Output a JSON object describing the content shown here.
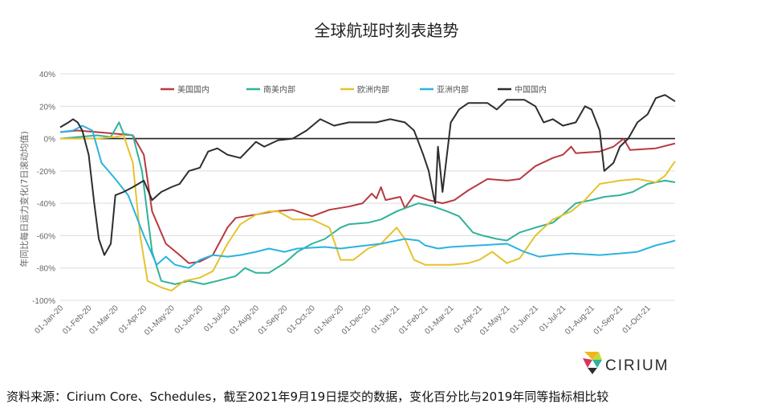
{
  "title": "全球航班时刻表趋势",
  "source_note": "资料来源：Cirium Core、Schedules，截至2021年9月19日提交的数据，变化百分比与2019年同等指标相比较",
  "logo_text": "CIRIUM",
  "chart_data": {
    "type": "line",
    "title": "全球航班时刻表趋势",
    "ylabel": "年同比每日运力变化(7日滚动均值)",
    "xlabel": "",
    "ylim": [
      -100,
      40
    ],
    "yticks": [
      -100,
      -80,
      -60,
      -40,
      -20,
      0,
      20,
      40
    ],
    "ytick_labels": [
      "-100%",
      "-80%",
      "-60%",
      "-40%",
      "-20%",
      "0%",
      "20%",
      "40%"
    ],
    "xtick_labels": [
      "01-Jan-20",
      "01-Feb-20",
      "01-Mar-20",
      "01-Apr-20",
      "01-May-20",
      "01-Jun-20",
      "01-Jul-20",
      "01-Aug-20",
      "01-Sep-20",
      "01-Oct-20",
      "01-Nov-20",
      "01-Dec-20",
      "01-Jan-21",
      "01-Feb-21",
      "01-Mar-21",
      "01-Apr-21",
      "01-May-21",
      "01-Jun-21",
      "01-Jul-21",
      "01-Aug-21",
      "01-Sep-21",
      "01-Oct-21"
    ],
    "x_range": [
      "2020-01-01",
      "2021-10-31"
    ],
    "grid": "horizontal",
    "reference_line": 0,
    "legend_position": "top",
    "series": [
      {
        "name": "美国国内",
        "color": "#b83a41",
        "points": [
          [
            "2020-01-01",
            4
          ],
          [
            "2020-01-20",
            5
          ],
          [
            "2020-02-10",
            4
          ],
          [
            "2020-03-01",
            3
          ],
          [
            "2020-03-20",
            2
          ],
          [
            "2020-04-01",
            -10
          ],
          [
            "2020-04-10",
            -45
          ],
          [
            "2020-04-25",
            -65
          ],
          [
            "2020-05-10",
            -72
          ],
          [
            "2020-05-20",
            -77
          ],
          [
            "2020-06-01",
            -76
          ],
          [
            "2020-06-15",
            -72
          ],
          [
            "2020-07-01",
            -55
          ],
          [
            "2020-07-10",
            -49
          ],
          [
            "2020-08-01",
            -47
          ],
          [
            "2020-08-20",
            -45
          ],
          [
            "2020-09-10",
            -44
          ],
          [
            "2020-10-01",
            -48
          ],
          [
            "2020-10-20",
            -44
          ],
          [
            "2020-11-10",
            -42
          ],
          [
            "2020-11-25",
            -40
          ],
          [
            "2020-12-05",
            -34
          ],
          [
            "2020-12-10",
            -37
          ],
          [
            "2020-12-15",
            -30
          ],
          [
            "2020-12-20",
            -38
          ],
          [
            "2021-01-05",
            -36
          ],
          [
            "2021-01-10",
            -43
          ],
          [
            "2021-01-20",
            -35
          ],
          [
            "2021-02-05",
            -38
          ],
          [
            "2021-02-20",
            -40
          ],
          [
            "2021-03-05",
            -38
          ],
          [
            "2021-03-20",
            -32
          ],
          [
            "2021-04-10",
            -25
          ],
          [
            "2021-05-01",
            -26
          ],
          [
            "2021-05-15",
            -25
          ],
          [
            "2021-06-01",
            -17
          ],
          [
            "2021-06-20",
            -12
          ],
          [
            "2021-07-01",
            -10
          ],
          [
            "2021-07-10",
            -5
          ],
          [
            "2021-07-15",
            -9
          ],
          [
            "2021-08-10",
            -8
          ],
          [
            "2021-08-25",
            -5
          ],
          [
            "2021-09-05",
            0
          ],
          [
            "2021-09-12",
            -7
          ],
          [
            "2021-10-10",
            -6
          ],
          [
            "2021-10-31",
            -3
          ]
        ]
      },
      {
        "name": "南美内部",
        "color": "#2fb39a",
        "points": [
          [
            "2020-01-01",
            0
          ],
          [
            "2020-01-20",
            1
          ],
          [
            "2020-02-10",
            2
          ],
          [
            "2020-02-25",
            1
          ],
          [
            "2020-03-05",
            10
          ],
          [
            "2020-03-10",
            3
          ],
          [
            "2020-03-20",
            2
          ],
          [
            "2020-03-30",
            -20
          ],
          [
            "2020-04-10",
            -70
          ],
          [
            "2020-04-20",
            -88
          ],
          [
            "2020-05-05",
            -90
          ],
          [
            "2020-05-20",
            -88
          ],
          [
            "2020-06-05",
            -90
          ],
          [
            "2020-06-20",
            -88
          ],
          [
            "2020-07-10",
            -85
          ],
          [
            "2020-07-20",
            -80
          ],
          [
            "2020-08-01",
            -83
          ],
          [
            "2020-08-15",
            -83
          ],
          [
            "2020-09-01",
            -77
          ],
          [
            "2020-09-15",
            -70
          ],
          [
            "2020-10-01",
            -65
          ],
          [
            "2020-10-15",
            -62
          ],
          [
            "2020-11-01",
            -55
          ],
          [
            "2020-11-10",
            -53
          ],
          [
            "2020-12-01",
            -52
          ],
          [
            "2020-12-15",
            -50
          ],
          [
            "2021-01-01",
            -45
          ],
          [
            "2021-01-15",
            -42
          ],
          [
            "2021-01-25",
            -40
          ],
          [
            "2021-02-10",
            -42
          ],
          [
            "2021-02-25",
            -45
          ],
          [
            "2021-03-10",
            -48
          ],
          [
            "2021-03-25",
            -58
          ],
          [
            "2021-04-05",
            -60
          ],
          [
            "2021-04-20",
            -62
          ],
          [
            "2021-05-01",
            -63
          ],
          [
            "2021-05-15",
            -58
          ],
          [
            "2021-06-01",
            -55
          ],
          [
            "2021-06-20",
            -52
          ],
          [
            "2021-07-01",
            -47
          ],
          [
            "2021-07-15",
            -40
          ],
          [
            "2021-08-01",
            -38
          ],
          [
            "2021-08-15",
            -36
          ],
          [
            "2021-09-01",
            -35
          ],
          [
            "2021-09-15",
            -33
          ],
          [
            "2021-10-01",
            -28
          ],
          [
            "2021-10-20",
            -26
          ],
          [
            "2021-10-31",
            -27
          ]
        ]
      },
      {
        "name": "欧洲内部",
        "color": "#e6c22e",
        "points": [
          [
            "2020-01-01",
            0
          ],
          [
            "2020-01-20",
            0
          ],
          [
            "2020-02-10",
            0
          ],
          [
            "2020-03-01",
            1
          ],
          [
            "2020-03-10",
            2
          ],
          [
            "2020-03-20",
            -15
          ],
          [
            "2020-03-28",
            -60
          ],
          [
            "2020-04-05",
            -88
          ],
          [
            "2020-04-20",
            -92
          ],
          [
            "2020-05-01",
            -94
          ],
          [
            "2020-05-15",
            -88
          ],
          [
            "2020-06-01",
            -86
          ],
          [
            "2020-06-15",
            -82
          ],
          [
            "2020-07-01",
            -65
          ],
          [
            "2020-07-15",
            -53
          ],
          [
            "2020-08-01",
            -47
          ],
          [
            "2020-08-15",
            -45
          ],
          [
            "2020-08-25",
            -45
          ],
          [
            "2020-09-10",
            -50
          ],
          [
            "2020-10-01",
            -50
          ],
          [
            "2020-10-20",
            -55
          ],
          [
            "2020-11-01",
            -75
          ],
          [
            "2020-11-15",
            -75
          ],
          [
            "2020-12-01",
            -68
          ],
          [
            "2020-12-15",
            -65
          ],
          [
            "2021-01-01",
            -55
          ],
          [
            "2021-01-10",
            -62
          ],
          [
            "2021-01-20",
            -75
          ],
          [
            "2021-02-01",
            -78
          ],
          [
            "2021-03-01",
            -78
          ],
          [
            "2021-03-20",
            -77
          ],
          [
            "2021-04-01",
            -75
          ],
          [
            "2021-04-15",
            -70
          ],
          [
            "2021-05-01",
            -77
          ],
          [
            "2021-05-15",
            -74
          ],
          [
            "2021-06-01",
            -60
          ],
          [
            "2021-06-20",
            -50
          ],
          [
            "2021-07-10",
            -45
          ],
          [
            "2021-07-25",
            -38
          ],
          [
            "2021-08-10",
            -28
          ],
          [
            "2021-09-01",
            -26
          ],
          [
            "2021-09-20",
            -25
          ],
          [
            "2021-10-10",
            -27
          ],
          [
            "2021-10-20",
            -23
          ],
          [
            "2021-10-31",
            -14
          ]
        ]
      },
      {
        "name": "亚洲内部",
        "color": "#2bb3df",
        "points": [
          [
            "2020-01-01",
            4
          ],
          [
            "2020-01-15",
            5
          ],
          [
            "2020-01-25",
            8
          ],
          [
            "2020-02-05",
            5
          ],
          [
            "2020-02-15",
            -15
          ],
          [
            "2020-03-01",
            -25
          ],
          [
            "2020-03-15",
            -35
          ],
          [
            "2020-04-01",
            -60
          ],
          [
            "2020-04-15",
            -78
          ],
          [
            "2020-04-25",
            -73
          ],
          [
            "2020-05-05",
            -78
          ],
          [
            "2020-05-20",
            -80
          ],
          [
            "2020-06-01",
            -75
          ],
          [
            "2020-06-15",
            -72
          ],
          [
            "2020-07-01",
            -73
          ],
          [
            "2020-07-15",
            -72
          ],
          [
            "2020-08-01",
            -70
          ],
          [
            "2020-08-15",
            -68
          ],
          [
            "2020-09-01",
            -70
          ],
          [
            "2020-09-15",
            -68
          ],
          [
            "2020-10-15",
            -67
          ],
          [
            "2020-11-01",
            -68
          ],
          [
            "2020-11-15",
            -67
          ],
          [
            "2020-12-15",
            -65
          ],
          [
            "2021-01-10",
            -62
          ],
          [
            "2021-01-25",
            -63
          ],
          [
            "2021-02-01",
            -66
          ],
          [
            "2021-02-15",
            -68
          ],
          [
            "2021-03-01",
            -67
          ],
          [
            "2021-04-01",
            -66
          ],
          [
            "2021-05-01",
            -65
          ],
          [
            "2021-05-20",
            -70
          ],
          [
            "2021-06-05",
            -73
          ],
          [
            "2021-06-20",
            -72
          ],
          [
            "2021-07-10",
            -71
          ],
          [
            "2021-08-10",
            -72
          ],
          [
            "2021-09-01",
            -71
          ],
          [
            "2021-09-20",
            -70
          ],
          [
            "2021-10-10",
            -66
          ],
          [
            "2021-10-25",
            -64
          ],
          [
            "2021-10-31",
            -63
          ]
        ]
      },
      {
        "name": "中国国内",
        "color": "#2d2d2d",
        "points": [
          [
            "2020-01-01",
            7
          ],
          [
            "2020-01-10",
            10
          ],
          [
            "2020-01-15",
            12
          ],
          [
            "2020-01-20",
            10
          ],
          [
            "2020-01-25",
            5
          ],
          [
            "2020-02-01",
            -10
          ],
          [
            "2020-02-07",
            -40
          ],
          [
            "2020-02-12",
            -62
          ],
          [
            "2020-02-18",
            -72
          ],
          [
            "2020-02-25",
            -65
          ],
          [
            "2020-03-01",
            -35
          ],
          [
            "2020-03-10",
            -33
          ],
          [
            "2020-03-20",
            -30
          ],
          [
            "2020-04-01",
            -26
          ],
          [
            "2020-04-10",
            -38
          ],
          [
            "2020-04-20",
            -33
          ],
          [
            "2020-05-01",
            -30
          ],
          [
            "2020-05-10",
            -28
          ],
          [
            "2020-05-20",
            -20
          ],
          [
            "2020-06-01",
            -18
          ],
          [
            "2020-06-10",
            -8
          ],
          [
            "2020-06-20",
            -6
          ],
          [
            "2020-07-01",
            -10
          ],
          [
            "2020-07-15",
            -12
          ],
          [
            "2020-08-01",
            -2
          ],
          [
            "2020-08-10",
            -5
          ],
          [
            "2020-08-25",
            -1
          ],
          [
            "2020-09-10",
            0
          ],
          [
            "2020-09-25",
            5
          ],
          [
            "2020-10-10",
            12
          ],
          [
            "2020-10-25",
            8
          ],
          [
            "2020-11-10",
            10
          ],
          [
            "2020-11-25",
            10
          ],
          [
            "2020-12-10",
            10
          ],
          [
            "2020-12-25",
            12
          ],
          [
            "2021-01-10",
            10
          ],
          [
            "2021-01-20",
            5
          ],
          [
            "2021-01-30",
            -10
          ],
          [
            "2021-02-05",
            -20
          ],
          [
            "2021-02-10",
            -35
          ],
          [
            "2021-02-12",
            -40
          ],
          [
            "2021-02-15",
            -5
          ],
          [
            "2021-02-20",
            -33
          ],
          [
            "2021-03-01",
            10
          ],
          [
            "2021-03-10",
            18
          ],
          [
            "2021-03-20",
            22
          ],
          [
            "2021-04-10",
            22
          ],
          [
            "2021-04-20",
            18
          ],
          [
            "2021-05-01",
            24
          ],
          [
            "2021-05-20",
            24
          ],
          [
            "2021-06-01",
            20
          ],
          [
            "2021-06-10",
            10
          ],
          [
            "2021-06-20",
            12
          ],
          [
            "2021-07-01",
            8
          ],
          [
            "2021-07-15",
            10
          ],
          [
            "2021-07-25",
            20
          ],
          [
            "2021-08-01",
            18
          ],
          [
            "2021-08-10",
            5
          ],
          [
            "2021-08-15",
            -20
          ],
          [
            "2021-08-25",
            -15
          ],
          [
            "2021-09-01",
            -5
          ],
          [
            "2021-09-10",
            0
          ],
          [
            "2021-09-20",
            10
          ],
          [
            "2021-10-01",
            15
          ],
          [
            "2021-10-10",
            25
          ],
          [
            "2021-10-20",
            27
          ],
          [
            "2021-10-31",
            23
          ]
        ]
      }
    ]
  }
}
